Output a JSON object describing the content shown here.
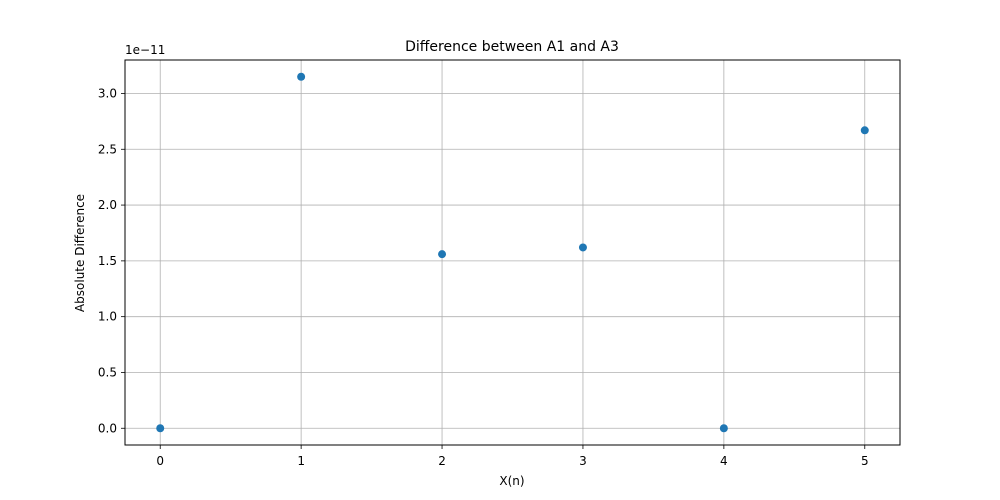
{
  "chart_data": {
    "type": "scatter",
    "title": "Difference between A1 and A3",
    "xlabel": "X(n)",
    "ylabel": "Absolute Difference",
    "y_offset_text": "1e−11",
    "x": [
      0,
      1,
      2,
      3,
      4,
      5
    ],
    "y": [
      0.0,
      3.15,
      1.56,
      1.62,
      0.0,
      2.67
    ],
    "x_ticks": [
      0,
      1,
      2,
      3,
      4,
      5
    ],
    "x_tick_labels": [
      "0",
      "1",
      "2",
      "3",
      "4",
      "5"
    ],
    "y_ticks": [
      0.0,
      0.5,
      1.0,
      1.5,
      2.0,
      2.5,
      3.0
    ],
    "y_tick_labels": [
      "0.0",
      "0.5",
      "1.0",
      "1.5",
      "2.0",
      "2.5",
      "3.0"
    ],
    "xlim": [
      -0.25,
      5.25
    ],
    "ylim": [
      -0.15,
      3.3
    ],
    "grid": true,
    "marker_color": "#1f77b4",
    "grid_color": "#b0b0b0"
  }
}
